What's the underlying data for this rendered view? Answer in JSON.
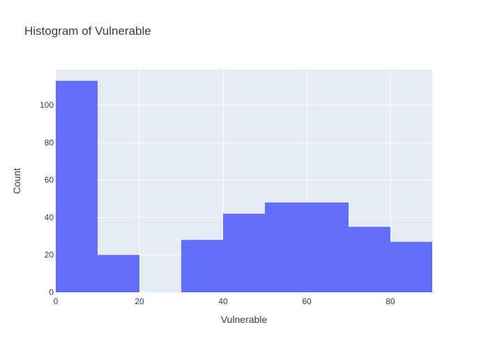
{
  "chart_data": {
    "type": "bar",
    "title": "Histogram of Vulnerable",
    "xlabel": "Vulnerable",
    "ylabel": "Count",
    "bins": [
      {
        "start": 0,
        "end": 10,
        "count": 113
      },
      {
        "start": 10,
        "end": 20,
        "count": 20
      },
      {
        "start": 20,
        "end": 30,
        "count": 0
      },
      {
        "start": 30,
        "end": 40,
        "count": 28
      },
      {
        "start": 40,
        "end": 50,
        "count": 42
      },
      {
        "start": 50,
        "end": 60,
        "count": 48
      },
      {
        "start": 60,
        "end": 70,
        "count": 48
      },
      {
        "start": 70,
        "end": 80,
        "count": 35
      },
      {
        "start": 80,
        "end": 90,
        "count": 27
      }
    ],
    "xlim": [
      0,
      90
    ],
    "ylim": [
      0,
      119
    ],
    "xticks": [
      "0",
      "20",
      "40",
      "60",
      "80"
    ],
    "yticks": [
      "0",
      "20",
      "40",
      "60",
      "80",
      "100"
    ],
    "grid": true,
    "colors": {
      "bar": "#636efa",
      "plot_background": "#e5ecf6",
      "grid": "#ffffff",
      "text": "#2a3f5f"
    }
  }
}
